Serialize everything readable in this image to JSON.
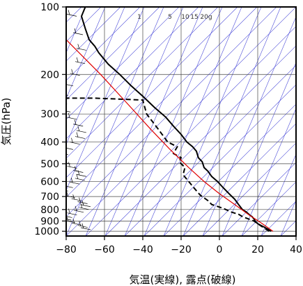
{
  "chart_data": {
    "type": "line",
    "title": "",
    "xlabel": "気温(実線), 露点(破線)",
    "ylabel": "気圧(hPa)",
    "xlim": [
      -80,
      40
    ],
    "ylim": [
      1050,
      100
    ],
    "y_scale": "log",
    "xticks": [
      -80,
      -60,
      -40,
      -20,
      0,
      20,
      40
    ],
    "xtick_labels": [
      "−80",
      "−60",
      "−40",
      "−20",
      "0",
      "20",
      "40"
    ],
    "yticks": [
      100,
      200,
      300,
      400,
      500,
      600,
      700,
      800,
      900,
      1000
    ],
    "ytick_labels": [
      "100",
      "200",
      "300",
      "400",
      "500",
      "600",
      "700",
      "800",
      "900",
      "1000"
    ],
    "mixing_ratio_labels": [
      "1",
      "5",
      "10",
      "15",
      "20g"
    ],
    "grid": true,
    "series": [
      {
        "name": "",
        "style": "solid",
        "color": "#000000",
        "x": [
          27,
          25,
          20,
          19,
          18,
          17,
          16,
          14,
          12,
          10,
          8,
          5,
          2,
          -1,
          -4,
          -6,
          -8,
          -9,
          -11,
          -12,
          -14,
          -17,
          -20,
          -24,
          -28,
          -34,
          -40,
          -46,
          -52,
          -58,
          -63,
          -65,
          -68,
          -70,
          -72,
          -70
        ],
        "y": [
          1000,
          975,
          925,
          910,
          880,
          860,
          850,
          820,
          800,
          760,
          720,
          680,
          640,
          600,
          570,
          540,
          520,
          490,
          470,
          440,
          420,
          400,
          370,
          340,
          310,
          280,
          250,
          225,
          200,
          180,
          160,
          150,
          140,
          125,
          110,
          100
        ]
      },
      {
        "name": "",
        "style": "dashed",
        "color": "#000000",
        "x": [
          26,
          22,
          18,
          12,
          10,
          6,
          2,
          -2,
          -4,
          -6,
          -10,
          -12,
          -14,
          -16,
          -19,
          -18,
          -21,
          -20,
          -24,
          -22,
          -27,
          -32,
          -38,
          -40,
          -65,
          -80
        ],
        "y": [
          1000,
          950,
          900,
          860,
          840,
          820,
          790,
          770,
          760,
          730,
          690,
          660,
          630,
          600,
          560,
          520,
          490,
          470,
          450,
          420,
          400,
          350,
          300,
          260,
          255,
          255
        ]
      },
      {
        "name": "",
        "style": "solid",
        "color": "#e00000",
        "x": [
          28,
          22,
          15,
          8,
          0,
          -8,
          -16,
          -26,
          -36,
          -48,
          -62,
          -80
        ],
        "y": [
          1000,
          920,
          840,
          760,
          680,
          600,
          520,
          430,
          350,
          270,
          200,
          140
        ]
      }
    ]
  }
}
